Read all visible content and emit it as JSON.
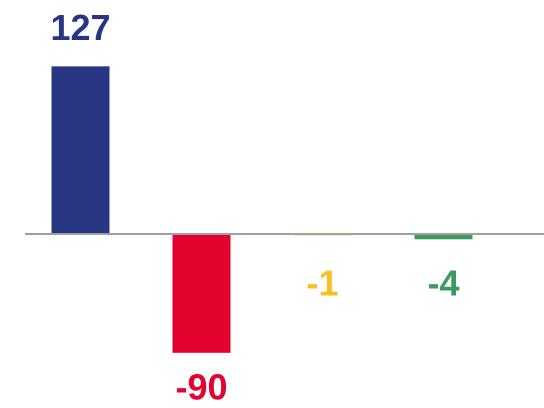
{
  "chart_data": {
    "type": "bar",
    "categories": [
      null,
      null,
      null,
      null
    ],
    "values": [
      127,
      -90,
      -1,
      -4
    ],
    "colors": [
      "#283583",
      "#e4032e",
      "#fbbf24",
      "#3d9a5f"
    ],
    "ylim": [
      -125,
      135
    ]
  }
}
